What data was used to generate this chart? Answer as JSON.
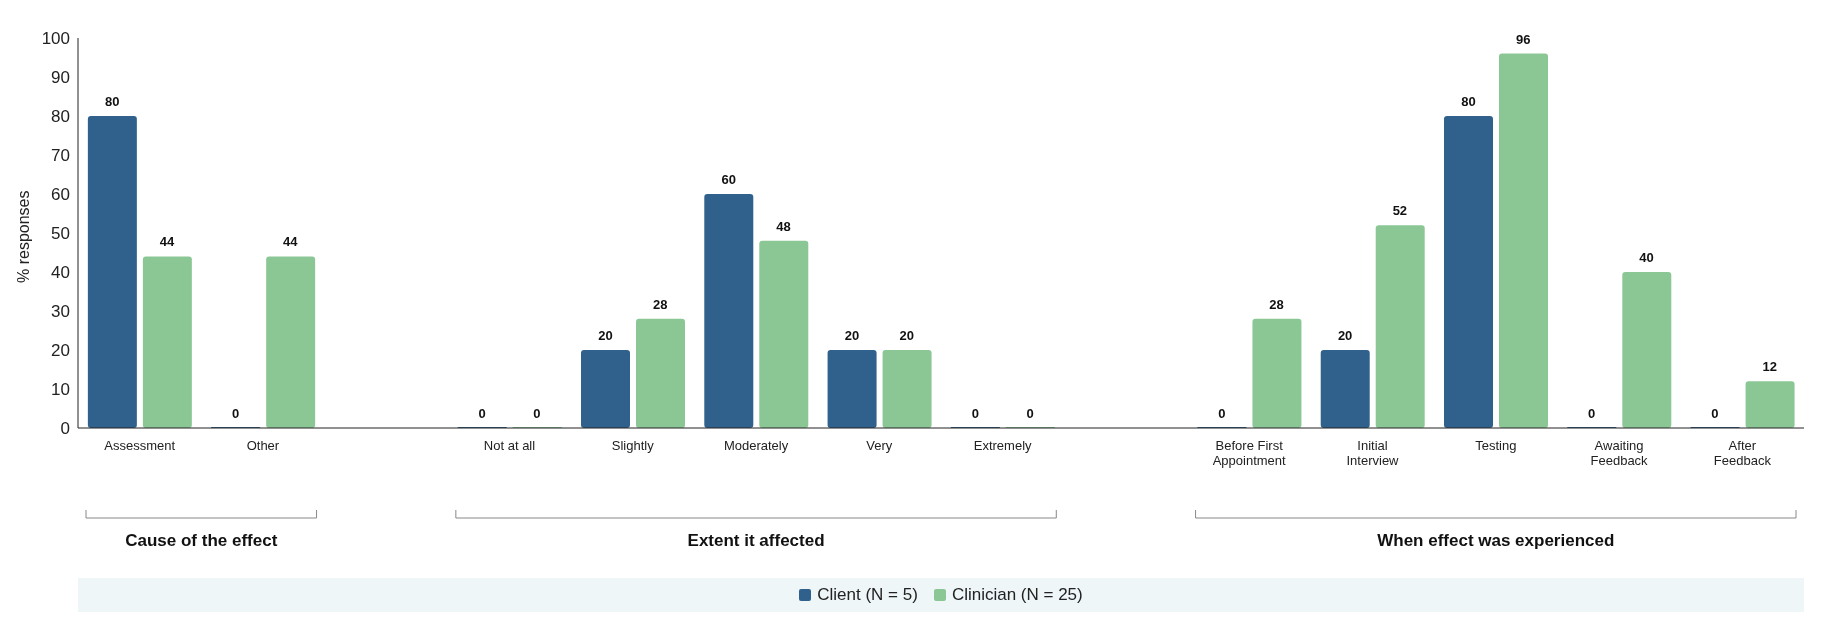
{
  "chart_data": {
    "type": "bar",
    "ylabel": "% responses",
    "categories": [
      "Assessment",
      "Other",
      null,
      "Not at all",
      "Slightly",
      "Moderately",
      "Very",
      "Extremely",
      null,
      "Before First Appointment",
      "Initial Interview",
      "Testing",
      "Awaiting Feedback",
      "After Feedback"
    ],
    "series": [
      {
        "name": "Client (N = 5)",
        "color": "#30618c",
        "values": [
          80,
          0,
          null,
          0,
          20,
          60,
          20,
          0,
          null,
          0,
          20,
          80,
          0,
          0
        ]
      },
      {
        "name": "Clinician (N = 25)",
        "color": "#8bc795",
        "values": [
          44,
          44,
          null,
          0,
          28,
          48,
          20,
          0,
          null,
          28,
          52,
          96,
          40,
          12
        ]
      }
    ],
    "ylim": [
      0,
      100
    ],
    "yticks": [
      0,
      10,
      20,
      30,
      40,
      50,
      60,
      70,
      80,
      90,
      100
    ],
    "annotations": [
      "Cause of the effect",
      "Extent it affected",
      "When effect was experienced"
    ],
    "data_labels": true,
    "grid": false,
    "legend": "bottom"
  }
}
